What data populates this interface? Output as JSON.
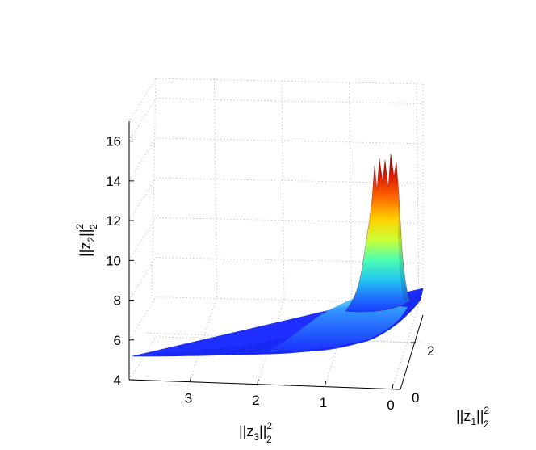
{
  "chart_data": {
    "type": "surface3d",
    "title": "",
    "zlabel": {
      "base": "||z",
      "sub": "2",
      "mid": "||",
      "sup": "2",
      "sub2": "2"
    },
    "xlabel": {
      "base": "||z",
      "sub": "3",
      "mid": "||",
      "sup": "2",
      "sub2": "2"
    },
    "ylabel": {
      "base": "||z",
      "sub": "1",
      "mid": "||",
      "sup": "2",
      "sub2": "2"
    },
    "z_ticks": [
      4,
      6,
      8,
      10,
      12,
      14,
      16
    ],
    "x_ticks": [
      3,
      2,
      1,
      0
    ],
    "y_ticks": [
      0,
      2
    ],
    "z_range": [
      4,
      17
    ],
    "x_range": [
      0,
      4
    ],
    "y_range": [
      0,
      3.2
    ],
    "colormap": "jet",
    "grid": true,
    "surface_samples": [
      {
        "z3": 3.9,
        "z2": 5.0
      },
      {
        "z3": 3.0,
        "z2": 5.5
      },
      {
        "z3": 2.0,
        "z2": 6.2
      },
      {
        "z3": 1.0,
        "z2": 7.0
      },
      {
        "z3": 0.5,
        "z2": 7.5
      },
      {
        "z3": 0.3,
        "z2": 9.0
      },
      {
        "z3": 0.2,
        "z2": 11.5
      },
      {
        "z3": 0.15,
        "z2": 14.0
      },
      {
        "z3": 0.1,
        "z2": 16.5
      }
    ]
  }
}
